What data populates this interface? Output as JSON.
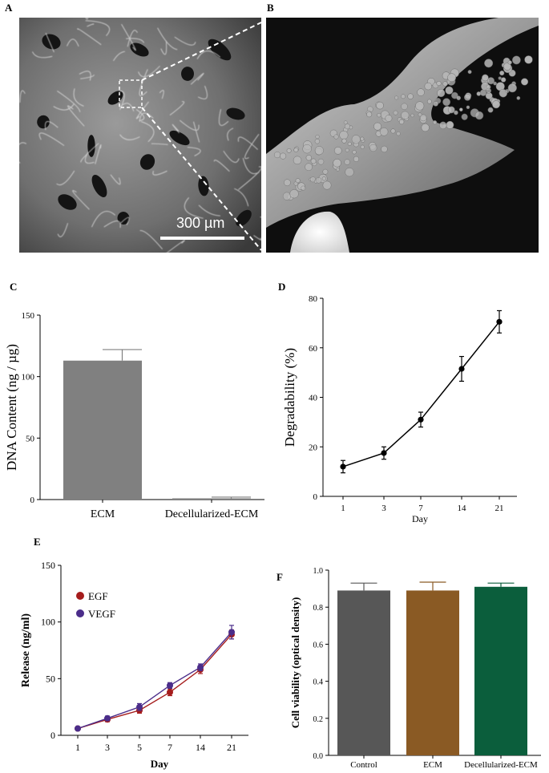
{
  "panels": {
    "A": {
      "letter": "A",
      "scale_bar": "300 µm"
    },
    "B": {
      "letter": "B"
    }
  },
  "chart_data": [
    {
      "id": "C",
      "letter": "C",
      "type": "bar",
      "categories": [
        "ECM",
        "Decellularized-ECM"
      ],
      "values": [
        113,
        1
      ],
      "errors": [
        9,
        1
      ],
      "colors": [
        "#808080",
        "#808080"
      ],
      "ylabel": "DNA Content (ng / µg)",
      "xlabel": "",
      "ylim": [
        0,
        150
      ],
      "yticks": [
        "0",
        "50",
        "100",
        "150"
      ]
    },
    {
      "id": "D",
      "letter": "D",
      "type": "line",
      "x": [
        "1",
        "3",
        "7",
        "14",
        "21"
      ],
      "series": [
        {
          "values": [
            12,
            17.5,
            31,
            51.5,
            70.5
          ],
          "errors": [
            2.5,
            2.5,
            3,
            5,
            4.5
          ],
          "color": "#000000"
        }
      ],
      "xlabel": "Day",
      "ylabel": "Degradability (%)",
      "ylim": [
        0,
        80
      ],
      "yticks": [
        "0",
        "20",
        "40",
        "60",
        "80"
      ]
    },
    {
      "id": "E",
      "letter": "E",
      "type": "line",
      "x": [
        "1",
        "3",
        "5",
        "7",
        "14",
        "21"
      ],
      "series": [
        {
          "name": "EGF",
          "values": [
            6,
            14,
            22,
            38,
            58,
            89
          ],
          "errors": [
            1.5,
            2,
            2.5,
            3,
            3.5,
            4
          ],
          "color": "#a51c1c"
        },
        {
          "name": "VEGF",
          "values": [
            6,
            15,
            25,
            44,
            60,
            91
          ],
          "errors": [
            1.5,
            2,
            3,
            2.5,
            3,
            6
          ],
          "color": "#4b2d8a"
        }
      ],
      "xlabel": "Day",
      "ylabel": "Release (ng/ml)",
      "ylim": [
        0,
        150
      ],
      "yticks": [
        "0",
        "50",
        "100",
        "150"
      ],
      "legend": "top-left"
    },
    {
      "id": "F",
      "letter": "F",
      "type": "bar",
      "categories": [
        "Control",
        "ECM",
        "Decellularized-ECM"
      ],
      "values": [
        0.89,
        0.89,
        0.91
      ],
      "errors": [
        0.04,
        0.045,
        0.02
      ],
      "colors": [
        "#575757",
        "#8a5a24",
        "#0b5e3c"
      ],
      "ylabel": "Cell viability (optical density)",
      "xlabel": "",
      "ylim": [
        0,
        1.0
      ],
      "yticks": [
        "0.0",
        "0.2",
        "0.4",
        "0.6",
        "0.8",
        "1.0"
      ]
    }
  ]
}
